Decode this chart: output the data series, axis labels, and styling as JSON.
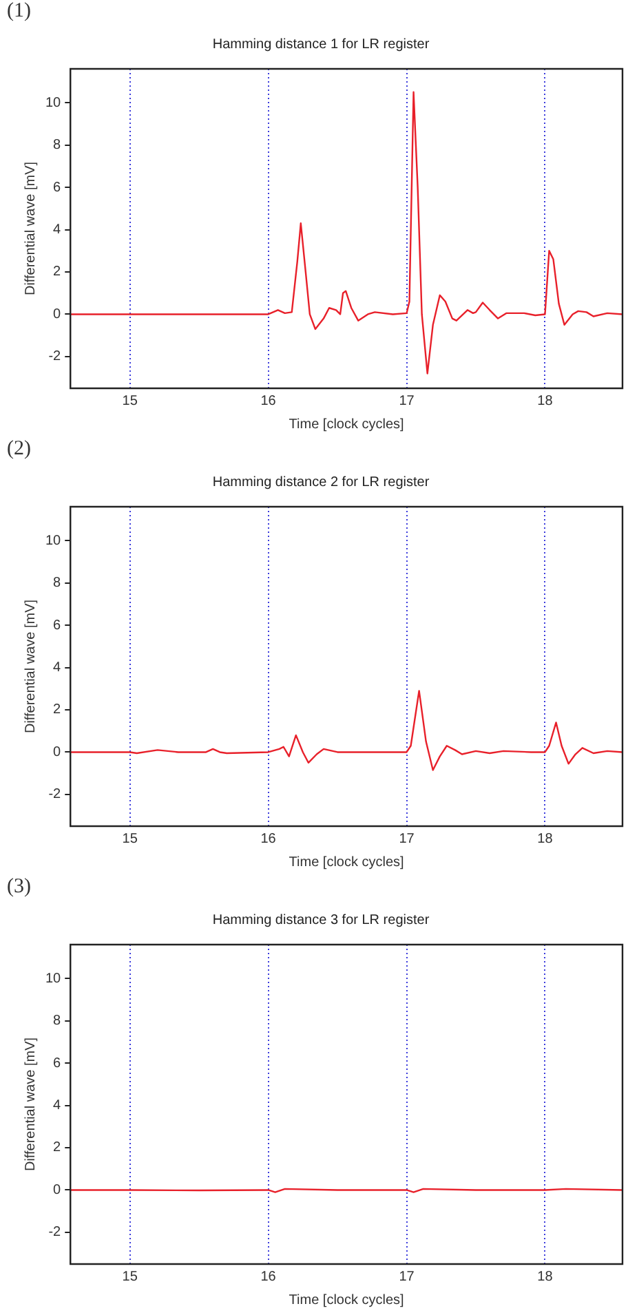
{
  "chart_data": [
    {
      "type": "line",
      "title": "Hamming distance 1 for LR register",
      "xlabel": "Time [clock cycles]",
      "ylabel": "Differential wave [mV]",
      "annotations": [
        "(1)"
      ],
      "xlim": [
        14.57,
        18.56
      ],
      "ylim": [
        -3.5,
        11.6
      ],
      "xticks": [
        15,
        16,
        17,
        18
      ],
      "yticks": [
        -2,
        0,
        2,
        4,
        6,
        8,
        10
      ],
      "grid": "x",
      "legend": false,
      "marker": "none",
      "line_style": "solid",
      "series": [
        {
          "color": "#e8202a",
          "x": [
            14.57,
            15.0,
            15.5,
            16.0,
            16.07,
            16.12,
            16.17,
            16.21,
            16.235,
            16.27,
            16.3,
            16.34,
            16.4,
            16.44,
            16.49,
            16.52,
            16.54,
            16.56,
            16.6,
            16.65,
            16.72,
            16.77,
            16.9,
            17.0,
            17.02,
            17.05,
            17.08,
            17.11,
            17.15,
            17.19,
            17.24,
            17.28,
            17.33,
            17.36,
            17.44,
            17.48,
            17.5,
            17.55,
            17.6,
            17.66,
            17.72,
            17.85,
            17.93,
            18.0,
            18.03,
            18.06,
            18.1,
            18.14,
            18.2,
            18.24,
            18.3,
            18.35,
            18.45,
            18.56
          ],
          "values": [
            0,
            0,
            0,
            0,
            0.2,
            0.05,
            0.1,
            2.5,
            4.3,
            2.0,
            0,
            -0.7,
            -0.2,
            0.3,
            0.2,
            0,
            1.0,
            1.1,
            0.3,
            -0.3,
            0,
            0.1,
            0,
            0.05,
            0.6,
            10.5,
            6,
            0,
            -2.8,
            -0.5,
            0.9,
            0.6,
            -0.2,
            -0.3,
            0.2,
            0.05,
            0.1,
            0.55,
            0.2,
            -0.2,
            0.05,
            0.05,
            -0.05,
            0,
            3.0,
            2.6,
            0.5,
            -0.5,
            0,
            0.15,
            0.1,
            -0.1,
            0.05,
            0
          ]
        }
      ]
    },
    {
      "type": "line",
      "title": "Hamming distance 2 for LR register",
      "xlabel": "Time [clock cycles]",
      "ylabel": "Differential wave [mV]",
      "annotations": [
        "(2)"
      ],
      "xlim": [
        14.57,
        18.56
      ],
      "ylim": [
        -3.5,
        11.6
      ],
      "xticks": [
        15,
        16,
        17,
        18
      ],
      "yticks": [
        -2,
        0,
        2,
        4,
        6,
        8,
        10
      ],
      "grid": "x",
      "legend": false,
      "marker": "none",
      "line_style": "solid",
      "series": [
        {
          "color": "#e8202a",
          "x": [
            14.57,
            15.0,
            15.05,
            15.2,
            15.35,
            15.55,
            15.6,
            15.65,
            15.7,
            16.0,
            16.08,
            16.11,
            16.15,
            16.2,
            16.25,
            16.29,
            16.35,
            16.4,
            16.5,
            16.6,
            17.0,
            17.03,
            17.09,
            17.14,
            17.19,
            17.24,
            17.29,
            17.35,
            17.4,
            17.5,
            17.6,
            17.7,
            17.9,
            18.0,
            18.03,
            18.08,
            18.12,
            18.17,
            18.22,
            18.27,
            18.35,
            18.45,
            18.56
          ],
          "values": [
            0,
            0,
            -0.05,
            0.1,
            0,
            0,
            0.15,
            0,
            -0.05,
            0,
            0.15,
            0.25,
            -0.2,
            0.8,
            0,
            -0.5,
            -0.1,
            0.15,
            0,
            0,
            0,
            0.3,
            2.9,
            0.5,
            -0.85,
            -0.2,
            0.3,
            0.1,
            -0.1,
            0.05,
            -0.05,
            0.05,
            0,
            0,
            0.3,
            1.4,
            0.3,
            -0.55,
            -0.1,
            0.2,
            -0.05,
            0.05,
            0
          ]
        }
      ]
    },
    {
      "type": "line",
      "title": "Hamming distance 3 for LR register",
      "xlabel": "Time [clock cycles]",
      "ylabel": "Differential wave [mV]",
      "annotations": [
        "(3)"
      ],
      "xlim": [
        14.57,
        18.56
      ],
      "ylim": [
        -3.5,
        11.6
      ],
      "xticks": [
        15,
        16,
        17,
        18
      ],
      "yticks": [
        -2,
        0,
        2,
        4,
        6,
        8,
        10
      ],
      "grid": "x",
      "legend": false,
      "marker": "none",
      "line_style": "solid",
      "series": [
        {
          "color": "#e8202a",
          "x": [
            14.57,
            15.0,
            15.5,
            16.0,
            16.05,
            16.12,
            16.5,
            17.0,
            17.05,
            17.12,
            17.5,
            18.0,
            18.15,
            18.56
          ],
          "values": [
            0,
            0,
            -0.02,
            0,
            -0.1,
            0.05,
            0,
            0,
            -0.1,
            0.05,
            0,
            0,
            0.05,
            0
          ]
        }
      ]
    }
  ]
}
